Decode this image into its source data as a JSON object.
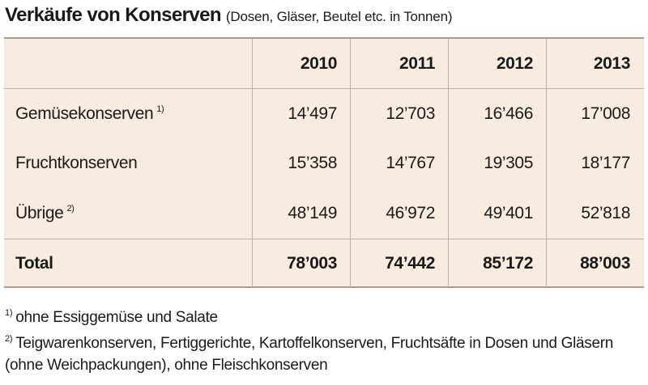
{
  "title": {
    "main": "Verkäufe von Konserven",
    "sub": "(Dosen, Gläser, Beutel etc. in Tonnen)"
  },
  "table": {
    "columns": [
      "2010",
      "2011",
      "2012",
      "2013"
    ],
    "rows": [
      {
        "label": "Gemüsekonserven",
        "note": "1)",
        "values": [
          "14’497",
          "12’703",
          "16’466",
          "17’008"
        ]
      },
      {
        "label": "Fruchtkonserven",
        "note": "",
        "values": [
          "15’358",
          "14’767",
          "19’305",
          "18’177"
        ]
      },
      {
        "label": "Übrige",
        "note": "2)",
        "values": [
          "48’149",
          "46’972",
          "49’401",
          "52’818"
        ]
      }
    ],
    "total": {
      "label": "Total",
      "values": [
        "78’003",
        "74’442",
        "85’172",
        "88’003"
      ]
    }
  },
  "footnotes": [
    {
      "mark": "1)",
      "text": "ohne Essiggemüse und Salate"
    },
    {
      "mark": "2)",
      "text": "Teigwarenkonserven, Fertiggerichte, Kartoffelkonserven, Fruchtsäfte in Dosen und Gläsern (ohne Weichpackungen), ohne Fleischkonserven"
    }
  ]
}
